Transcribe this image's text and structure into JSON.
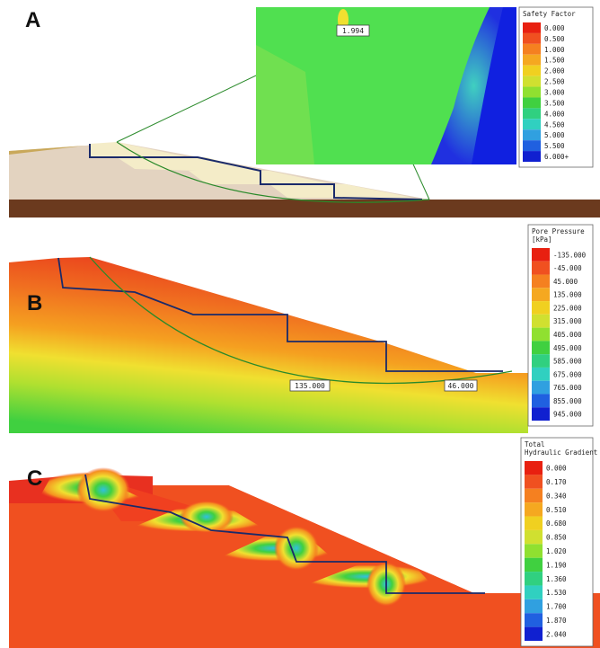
{
  "panels": [
    {
      "label": "A",
      "legend": {
        "title": [
          "Safety Factor"
        ],
        "entries": [
          "0.000",
          "0.500",
          "1.000",
          "1.500",
          "2.000",
          "2.500",
          "3.000",
          "3.500",
          "4.000",
          "4.500",
          "5.000",
          "5.500",
          "6.000+"
        ]
      },
      "annotations": [
        "1.994"
      ]
    },
    {
      "label": "B",
      "legend": {
        "title": [
          "Pore Pressure",
          "[kPa]"
        ],
        "entries": [
          "-135.000",
          "-45.000",
          "45.000",
          "135.000",
          "225.000",
          "315.000",
          "405.000",
          "495.000",
          "585.000",
          "675.000",
          "765.000",
          "855.000",
          "945.000"
        ]
      },
      "annotations": [
        "135.000",
        "46.000"
      ]
    },
    {
      "label": "C",
      "legend": {
        "title": [
          "Total",
          "Hydraulic Gradient"
        ],
        "entries": [
          "0.000",
          "0.170",
          "0.340",
          "0.510",
          "0.680",
          "0.850",
          "1.020",
          "1.190",
          "1.360",
          "1.530",
          "1.700",
          "1.870",
          "2.040"
        ]
      },
      "annotations": []
    }
  ]
}
